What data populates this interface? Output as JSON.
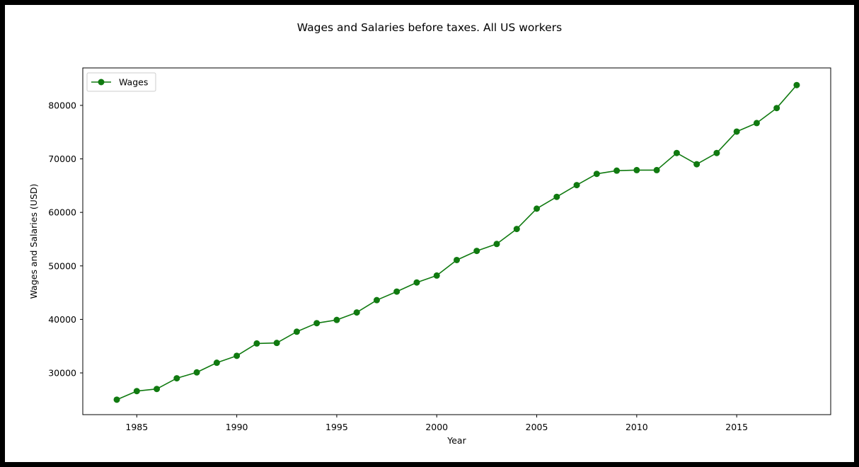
{
  "chart_data": {
    "type": "line",
    "title": "Wages and Salaries before taxes. All US workers",
    "xlabel": "Year",
    "ylabel": "Wages and Salaries (USD)",
    "xlim": [
      1982.3,
      2019.7
    ],
    "ylim": [
      22200,
      87000
    ],
    "xticks": [
      1985,
      1990,
      1995,
      2000,
      2005,
      2010,
      2015
    ],
    "yticks": [
      30000,
      40000,
      50000,
      60000,
      70000,
      80000
    ],
    "grid": false,
    "legend_position": "top-left",
    "series": [
      {
        "name": "Wages",
        "color": "#107a10",
        "marker": "circle",
        "x": [
          1984,
          1985,
          1986,
          1987,
          1988,
          1989,
          1990,
          1991,
          1992,
          1993,
          1994,
          1995,
          1996,
          1997,
          1998,
          1999,
          2000,
          2001,
          2002,
          2003,
          2004,
          2005,
          2006,
          2007,
          2008,
          2009,
          2010,
          2011,
          2012,
          2013,
          2014,
          2015,
          2016,
          2017,
          2018
        ],
        "values": [
          25000,
          26600,
          27000,
          29000,
          30100,
          31900,
          33200,
          35500,
          35600,
          37700,
          39300,
          39900,
          41300,
          43600,
          45200,
          46900,
          48200,
          51100,
          52800,
          54100,
          56900,
          60700,
          62900,
          65100,
          67200,
          67800,
          67900,
          67900,
          71100,
          69000,
          71100,
          75100,
          76700,
          79500,
          83800
        ]
      }
    ]
  }
}
